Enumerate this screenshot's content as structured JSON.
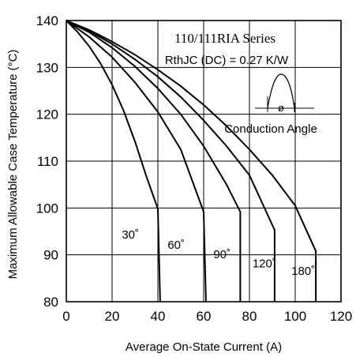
{
  "chart_data": {
    "type": "line",
    "title": "110/111RIA Series",
    "note": "RthJC (DC) = 0.27 K/W",
    "inset_label": "Conduction Angle",
    "inset_symbol": "ø",
    "xlabel": "Average On-State Current (A)",
    "ylabel": "Maximum Allowable Case Temperature (°C)",
    "xlim": [
      0,
      120
    ],
    "ylim": [
      80,
      140
    ],
    "xticks": [
      "0",
      "20",
      "40",
      "60",
      "80",
      "100",
      "120"
    ],
    "yticks": [
      "140",
      "130",
      "120",
      "110",
      "100",
      "90",
      "80"
    ],
    "grid": true,
    "series": [
      {
        "name": "30˚",
        "x": [
          0,
          5,
          10,
          15,
          20,
          25,
          30,
          35,
          40,
          41
        ],
        "y": [
          140,
          137.5,
          134.5,
          130.8,
          126.3,
          120.8,
          114.2,
          106.7,
          99.8,
          80
        ]
      },
      {
        "name": "60˚",
        "x": [
          0,
          10,
          20,
          30,
          40,
          50,
          60,
          61
        ],
        "y": [
          140,
          136.5,
          132.2,
          126.8,
          120.5,
          112.5,
          99.2,
          80
        ]
      },
      {
        "name": "90˚",
        "x": [
          0,
          10,
          20,
          30,
          40,
          50,
          60,
          70,
          76,
          76
        ],
        "y": [
          140,
          137.5,
          134.2,
          130.2,
          125.5,
          120,
          113.2,
          105,
          99.2,
          80
        ]
      },
      {
        "name": "120˚",
        "x": [
          0,
          10,
          20,
          30,
          40,
          50,
          60,
          70,
          80,
          91,
          91
        ],
        "y": [
          140,
          137.8,
          135,
          131.7,
          128,
          123.7,
          118.7,
          113.2,
          107,
          95.3,
          80
        ]
      },
      {
        "name": "180˚",
        "x": [
          0,
          10,
          20,
          30,
          40,
          50,
          60,
          70,
          80,
          90,
          100,
          109,
          109
        ],
        "y": [
          140,
          138,
          135.5,
          132.7,
          129.5,
          126,
          122,
          117.5,
          112.5,
          107,
          100.5,
          90.8,
          80
        ]
      }
    ]
  }
}
